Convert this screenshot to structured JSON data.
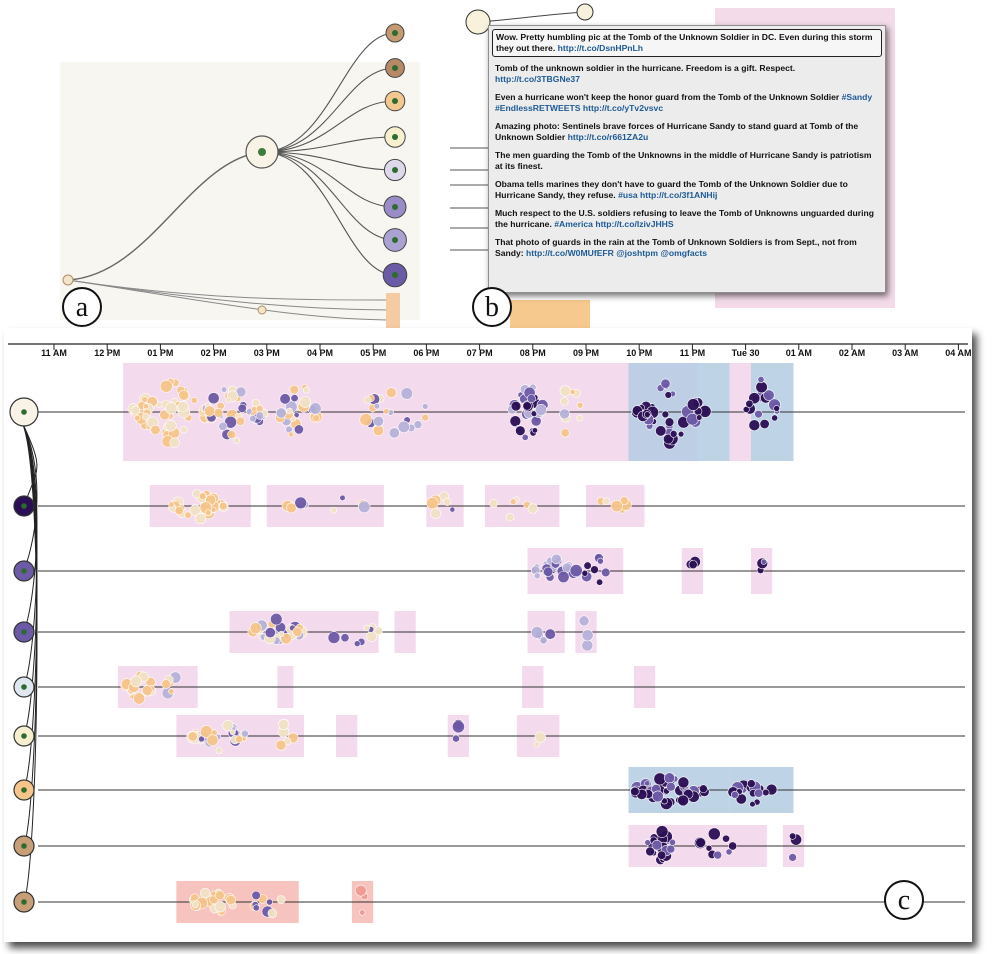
{
  "panel_labels": {
    "a": "a",
    "b": "b",
    "c": "c"
  },
  "colors": {
    "band_pink": "#f2d4ea",
    "band_blue": "#b4cbe3",
    "band_salmon": "#f4b9b3",
    "bubble_orange": "#f6c58a",
    "bubble_cream": "#f1e2c6",
    "bubble_lilac": "#b7b2d9",
    "bubble_purple": "#6d5aa6",
    "bubble_dark": "#2b0f54",
    "link_blue": "#1d5a96"
  },
  "tweets": [
    {
      "text": "Wow. Pretty humbling pic at the Tomb of the Unknown Soldier in DC. Even during this storm they out there.",
      "links": "http://t.co/DsnHPnLh",
      "selected": true
    },
    {
      "text": "Tomb of the unknown soldier in the hurricane. Freedom is a gift. Respect.",
      "links": "http://t.co/3TBGNe37"
    },
    {
      "text": "Even a hurricane won't keep the honor guard from the Tomb of the Unknown Soldier",
      "links": "#Sandy #EndlessRETWEETS http://t.co/yTv2vsvc"
    },
    {
      "text": "Amazing photo: Sentinels brave forces of Hurricane Sandy to stand guard at Tomb of the Unknown Soldier",
      "links": "http://t.co/r661ZA2u"
    },
    {
      "text": "The men guarding the Tomb of the Unknowns in the middle of Hurricane Sandy is patriotism at its finest.",
      "links": ""
    },
    {
      "text": "Obama tells marines they don't have to guard the Tomb of the Unknown Soldier due to Hurricane Sandy, they refuse.",
      "links": "#usa http://t.co/3f1ANHij"
    },
    {
      "text": "Much respect to the U.S. soldiers refusing to leave the Tomb of Unknowns unguarded during the hurricane.",
      "links": "#America http://t.co/IzivJHHS"
    },
    {
      "text": "That photo of guards in the rain at the Tomb of Unknown Soldiers is from Sept., not from Sandy:",
      "links": "http://t.co/W0MUfEFR @joshtpm @omgfacts"
    }
  ],
  "timeline": {
    "ticks": [
      "11 AM",
      "12 PM",
      "01 PM",
      "02 PM",
      "03 PM",
      "04 PM",
      "05 PM",
      "06 PM",
      "07 PM",
      "08 PM",
      "09 PM",
      "10 PM",
      "11 PM",
      "Tue 30",
      "01 AM",
      "02 AM",
      "03 AM",
      "04 AM"
    ],
    "rows": [
      {
        "node": "root-node",
        "bands": [
          [
            12.3,
            23.1,
            "p"
          ],
          [
            21.8,
            22.6,
            "b"
          ],
          [
            22.6,
            23.7,
            "b"
          ],
          [
            23.7,
            24.1,
            "p"
          ],
          [
            24.1,
            24.9,
            "b"
          ]
        ],
        "clusters": [
          [
            13.2,
            1.5,
            18,
            "orange"
          ],
          [
            14.4,
            1.2,
            16,
            "mix"
          ],
          [
            15.6,
            0.7,
            8,
            "mix"
          ],
          [
            17.0,
            0.3,
            3,
            "mix"
          ],
          [
            17.5,
            1.0,
            4,
            "mix"
          ],
          [
            19.9,
            0.6,
            10,
            "purple"
          ],
          [
            20.7,
            0.4,
            3,
            "mix"
          ],
          [
            22.6,
            1.3,
            14,
            "dark"
          ],
          [
            24.3,
            0.6,
            6,
            "dark"
          ]
        ]
      },
      {
        "node": "node-1",
        "bands": [
          [
            12.8,
            14.7,
            "p"
          ],
          [
            15.0,
            17.2,
            "p"
          ],
          [
            18.0,
            18.7,
            "p"
          ],
          [
            19.1,
            20.5,
            "p"
          ],
          [
            21.0,
            22.1,
            "p"
          ]
        ],
        "clusters": [
          [
            13.7,
            1.0,
            11,
            "orange"
          ],
          [
            16.1,
            1.5,
            3,
            "mix"
          ],
          [
            18.3,
            0.4,
            2,
            "mix"
          ],
          [
            19.7,
            0.9,
            2,
            "orange"
          ],
          [
            21.5,
            0.5,
            2,
            "orange"
          ]
        ]
      },
      {
        "node": "node-2",
        "bands": [
          [
            19.9,
            21.7,
            "p"
          ],
          [
            22.8,
            23.2,
            "p"
          ],
          [
            24.1,
            24.5,
            "p"
          ]
        ],
        "clusters": [
          [
            20.4,
            0.9,
            8,
            "purple"
          ],
          [
            21.2,
            0.5,
            3,
            "dark"
          ],
          [
            23.0,
            0.1,
            1,
            "dark"
          ],
          [
            24.3,
            0.1,
            1,
            "dark"
          ]
        ]
      },
      {
        "node": "node-3",
        "bands": [
          [
            14.3,
            17.1,
            "p"
          ],
          [
            17.4,
            17.8,
            "p"
          ],
          [
            19.9,
            20.6,
            "p"
          ],
          [
            20.8,
            21.2,
            "p"
          ]
        ],
        "clusters": [
          [
            15.2,
            1.0,
            10,
            "mix"
          ],
          [
            16.6,
            1.0,
            3,
            "mix"
          ],
          [
            20.2,
            0.3,
            2,
            "lilac"
          ],
          [
            21.0,
            0.2,
            1,
            "lilac"
          ]
        ]
      },
      {
        "node": "node-4",
        "bands": [
          [
            12.2,
            13.7,
            "p"
          ],
          [
            15.2,
            15.5,
            "p"
          ],
          [
            19.8,
            20.2,
            "p"
          ],
          [
            21.9,
            22.3,
            "p"
          ]
        ],
        "clusters": [
          [
            12.6,
            0.5,
            7,
            "orange"
          ],
          [
            13.3,
            0.4,
            2,
            "mix"
          ]
        ]
      },
      {
        "node": "node-5",
        "bands": [
          [
            13.3,
            15.7,
            "p"
          ],
          [
            16.3,
            16.7,
            "p"
          ],
          [
            18.4,
            18.8,
            "p"
          ],
          [
            19.7,
            20.5,
            "p"
          ]
        ],
        "clusters": [
          [
            14.1,
            1.0,
            10,
            "mix"
          ],
          [
            15.3,
            0.4,
            2,
            "cream"
          ],
          [
            18.6,
            0.1,
            1,
            "dark"
          ],
          [
            20.1,
            0.2,
            1,
            "cream"
          ]
        ]
      },
      {
        "node": "node-6",
        "bands": [
          [
            21.8,
            23.7,
            "b"
          ],
          [
            23.7,
            24.9,
            "b"
          ]
        ],
        "clusters": [
          [
            22.6,
            1.4,
            14,
            "dark"
          ],
          [
            24.1,
            0.8,
            6,
            "dark"
          ]
        ]
      },
      {
        "node": "node-7",
        "bands": [
          [
            21.8,
            22.3,
            "p"
          ],
          [
            22.3,
            23.2,
            "p"
          ],
          [
            23.2,
            24.4,
            "p"
          ],
          [
            24.7,
            25.1,
            "p"
          ]
        ],
        "clusters": [
          [
            22.4,
            0.5,
            7,
            "dark"
          ],
          [
            23.4,
            0.8,
            3,
            "dark"
          ],
          [
            24.9,
            0.1,
            1,
            "dark"
          ]
        ]
      },
      {
        "node": "node-8",
        "bands": [
          [
            13.3,
            15.6,
            "s"
          ],
          [
            16.6,
            17.0,
            "s"
          ]
        ],
        "clusters": [
          [
            14.0,
            0.8,
            7,
            "cream"
          ],
          [
            15.0,
            0.6,
            3,
            "mix"
          ],
          [
            16.8,
            0.1,
            1,
            "salmon"
          ]
        ]
      }
    ]
  }
}
